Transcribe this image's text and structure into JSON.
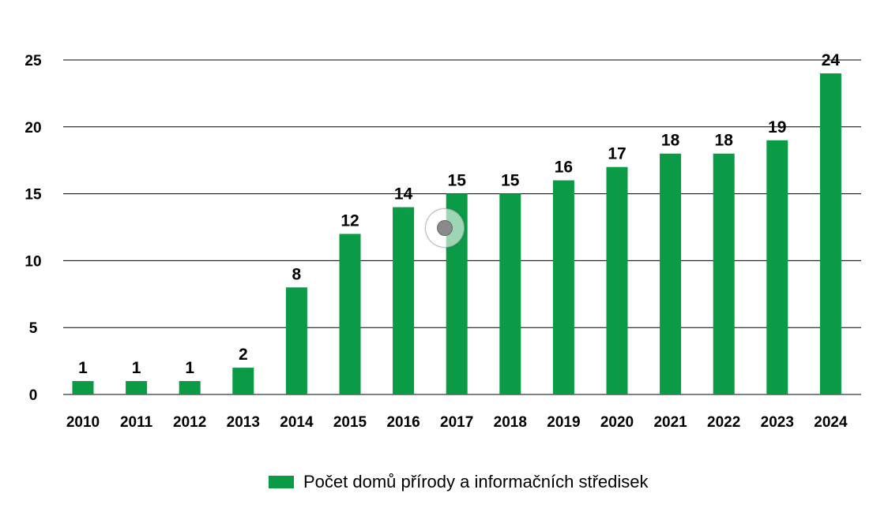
{
  "chart_data": {
    "type": "bar",
    "categories": [
      "2010",
      "2011",
      "2012",
      "2013",
      "2014",
      "2015",
      "2016",
      "2017",
      "2018",
      "2019",
      "2020",
      "2021",
      "2022",
      "2023",
      "2024"
    ],
    "series": [
      {
        "name": "Počet domů přírody a informačních středisek",
        "values": [
          1,
          1,
          1,
          2,
          8,
          12,
          14,
          15,
          15,
          16,
          17,
          18,
          18,
          19,
          24
        ],
        "color": "#0b9a45"
      }
    ],
    "data_labels": [
      "1",
      "1",
      "1",
      "2",
      "8",
      "12",
      "14",
      "15",
      "15",
      "16",
      "17",
      "18",
      "18",
      "19",
      "24"
    ],
    "y_ticks": [
      "0",
      "5",
      "10",
      "15",
      "20",
      "25"
    ],
    "y_tick_values": [
      0,
      5,
      10,
      15,
      20,
      25
    ],
    "ylim": [
      0,
      25
    ],
    "grid": true,
    "legend_position": "bottom-center",
    "title": "",
    "xlabel": "",
    "ylabel": ""
  },
  "legend": {
    "label": "Počet domů přírody a informačních středisek",
    "color": "#0b9a45"
  }
}
